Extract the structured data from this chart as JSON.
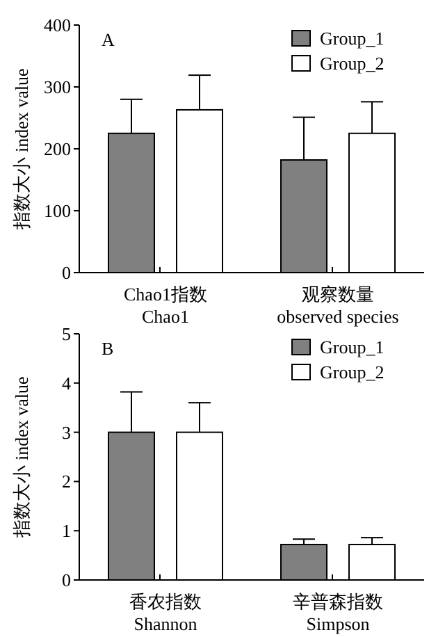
{
  "chart_data": [
    {
      "type": "bar",
      "title": "A",
      "ylabel": "指数大小 index value",
      "categories": [
        "Chao1指数\nChao1",
        "观察数量\nobserved species"
      ],
      "series": [
        {
          "name": "Group_1",
          "color": "#808080",
          "values": [
            225,
            182
          ],
          "errors": [
            55,
            69
          ]
        },
        {
          "name": "Group_2",
          "color": "#ffffff",
          "values": [
            263,
            225
          ],
          "errors": [
            56,
            51
          ]
        }
      ],
      "ylim": [
        0,
        400
      ],
      "yticks": [
        0,
        100,
        200,
        300,
        400
      ],
      "legend": "top right",
      "grid": false
    },
    {
      "type": "bar",
      "title": "B",
      "ylabel": "指数大小 index value",
      "categories": [
        "香农指数\nShannon",
        "辛普森指数\nSimpson"
      ],
      "series": [
        {
          "name": "Group_1",
          "color": "#808080",
          "values": [
            3.0,
            0.72
          ],
          "errors": [
            0.82,
            0.11
          ]
        },
        {
          "name": "Group_2",
          "color": "#ffffff",
          "values": [
            3.0,
            0.72
          ],
          "errors": [
            0.6,
            0.14
          ]
        }
      ],
      "ylim": [
        0,
        5
      ],
      "yticks": [
        0,
        1,
        2,
        3,
        4,
        5
      ],
      "legend": "top right",
      "grid": false
    }
  ]
}
